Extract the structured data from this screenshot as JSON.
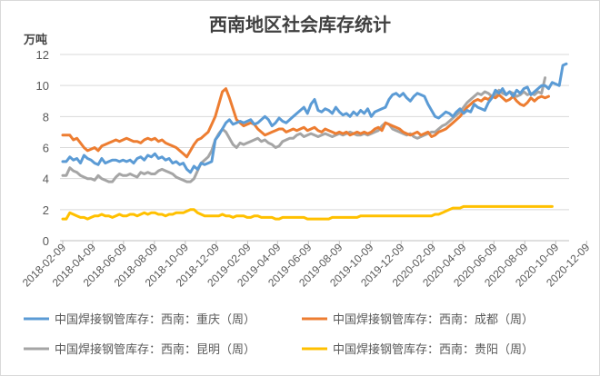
{
  "chart_data": {
    "type": "line",
    "title": "西南地区社会库存统计",
    "ylabel": "万吨",
    "ylim": [
      0,
      12
    ],
    "yticks": [
      0,
      2,
      4,
      6,
      8,
      10,
      12
    ],
    "grid": true,
    "legend_position": "bottom",
    "x_start": "2018-02-09",
    "x_step_weeks": 1,
    "xticks": [
      "2018-02-09",
      "2018-04-09",
      "2018-06-09",
      "2018-08-09",
      "2018-10-09",
      "2018-12-09",
      "2019-02-09",
      "2019-04-09",
      "2019-06-09",
      "2019-08-09",
      "2019-10-09",
      "2019-12-09",
      "2020-02-09",
      "2020-04-09",
      "2020-06-09",
      "2020-08-09",
      "2020-10-09",
      "2020-12-09"
    ],
    "series": [
      {
        "name": "中国焊接钢管库存：西南：重庆（周）",
        "color": "#5b9bd5",
        "values": [
          5.1,
          5.1,
          5.4,
          5.2,
          5.3,
          5.0,
          5.5,
          5.3,
          5.2,
          5.0,
          4.9,
          5.3,
          5.0,
          5.1,
          5.2,
          5.2,
          5.1,
          5.2,
          5.1,
          5.2,
          5.0,
          5.3,
          5.4,
          5.2,
          5.5,
          5.4,
          5.6,
          5.3,
          5.4,
          5.2,
          5.3,
          5.0,
          5.1,
          4.9,
          5.0,
          4.6,
          4.4,
          4.8,
          4.6,
          5.0,
          4.9,
          5.0,
          5.1,
          6.5,
          6.8,
          7.2,
          7.6,
          7.8,
          7.5,
          7.6,
          7.7,
          7.6,
          7.7,
          7.8,
          7.5,
          7.6,
          7.8,
          8.0,
          7.8,
          7.4,
          7.6,
          7.9,
          7.7,
          7.6,
          7.8,
          8.0,
          8.2,
          8.4,
          8.6,
          8.2,
          8.8,
          9.1,
          8.4,
          8.3,
          8.5,
          8.4,
          8.2,
          8.6,
          8.3,
          8.1,
          8.2,
          8.0,
          8.3,
          8.1,
          8.4,
          8.2,
          8.5,
          8.0,
          8.3,
          8.4,
          8.5,
          8.6,
          9.1,
          9.4,
          9.5,
          9.3,
          9.5,
          9.2,
          9.0,
          9.3,
          9.5,
          9.4,
          9.3,
          8.8,
          8.4,
          8.0,
          7.9,
          8.1,
          8.3,
          8.2,
          8.0,
          8.3,
          8.5,
          8.2,
          8.4,
          8.3,
          8.8,
          8.6,
          8.5,
          8.4,
          8.9,
          9.2,
          9.7,
          9.5,
          9.8,
          9.4,
          9.6,
          9.3,
          9.7,
          9.5,
          9.8,
          9.9,
          9.4,
          9.6,
          9.8,
          10.0,
          10.0,
          9.8,
          10.2,
          10.1,
          10.0,
          11.3,
          11.4
        ]
      },
      {
        "name": "中国焊接钢管库存：西南：成都（周）",
        "color": "#ed7d31",
        "values": [
          6.8,
          6.8,
          6.8,
          6.5,
          6.6,
          6.3,
          6.0,
          5.8,
          5.9,
          6.0,
          5.8,
          6.1,
          6.2,
          6.3,
          6.4,
          6.5,
          6.4,
          6.5,
          6.6,
          6.5,
          6.4,
          6.4,
          6.3,
          6.5,
          6.6,
          6.5,
          6.6,
          6.4,
          6.5,
          6.3,
          6.2,
          6.1,
          6.0,
          5.8,
          5.6,
          5.4,
          5.8,
          6.2,
          6.5,
          6.6,
          6.8,
          7.0,
          7.5,
          8.0,
          8.8,
          9.6,
          9.8,
          9.2,
          8.5,
          7.8,
          7.6,
          7.4,
          7.5,
          7.6,
          7.5,
          7.2,
          7.0,
          6.8,
          6.9,
          7.0,
          7.1,
          7.2,
          7.2,
          7.0,
          7.1,
          7.2,
          7.1,
          7.2,
          7.3,
          7.1,
          7.2,
          7.3,
          7.1,
          7.0,
          7.2,
          7.1,
          7.0,
          6.9,
          7.0,
          6.9,
          7.0,
          6.8,
          6.9,
          7.0,
          6.9,
          7.0,
          6.9,
          7.0,
          7.2,
          7.3,
          7.1,
          7.6,
          7.5,
          7.4,
          7.3,
          7.2,
          7.0,
          6.9,
          6.8,
          6.9,
          7.0,
          6.8,
          6.9,
          7.0,
          6.7,
          6.8,
          7.0,
          7.1,
          7.2,
          7.4,
          7.6,
          7.8,
          8.0,
          8.3,
          8.6,
          8.8,
          9.0,
          9.1,
          9.0,
          9.2,
          9.1,
          9.3,
          9.2,
          9.4,
          9.2,
          9.0,
          9.1,
          9.3,
          9.0,
          8.8,
          8.7,
          8.9,
          9.2,
          9.0,
          9.2,
          9.3,
          9.2,
          9.3
        ]
      },
      {
        "name": "中国焊接钢管库存：西南：昆明（周）",
        "color": "#a5a5a5",
        "values": [
          4.2,
          4.2,
          4.7,
          4.5,
          4.4,
          4.2,
          4.1,
          4.0,
          4.0,
          3.9,
          4.2,
          4.0,
          3.9,
          3.8,
          3.8,
          4.1,
          4.3,
          4.2,
          4.2,
          4.3,
          4.2,
          4.1,
          4.4,
          4.3,
          4.4,
          4.3,
          4.3,
          4.5,
          4.6,
          4.5,
          4.4,
          4.3,
          4.1,
          4.0,
          3.9,
          3.8,
          3.8,
          4.0,
          4.5,
          5.0,
          5.2,
          5.4,
          5.8,
          6.5,
          6.9,
          7.2,
          7.0,
          6.6,
          6.2,
          6.0,
          6.3,
          6.2,
          6.3,
          6.4,
          6.5,
          6.6,
          6.4,
          6.5,
          6.3,
          6.2,
          6.0,
          6.1,
          6.4,
          6.5,
          6.6,
          6.6,
          6.8,
          6.9,
          6.7,
          6.8,
          6.9,
          6.8,
          6.7,
          6.8,
          6.9,
          6.8,
          6.7,
          6.8,
          6.9,
          6.8,
          6.9,
          7.0,
          6.9,
          6.8,
          6.8,
          6.9,
          6.8,
          6.9,
          7.0,
          7.1,
          7.4,
          7.6,
          7.5,
          7.2,
          7.1,
          7.0,
          6.9,
          6.8,
          6.9,
          6.7,
          6.6,
          6.7,
          6.8,
          6.9,
          7.0,
          7.0,
          7.2,
          7.4,
          7.5,
          7.7,
          7.9,
          8.1,
          8.3,
          8.6,
          8.9,
          9.1,
          9.3,
          9.5,
          9.4,
          9.6,
          9.5,
          9.3,
          9.4,
          9.7,
          9.5,
          9.4,
          9.6,
          9.5,
          9.3,
          9.4,
          9.6,
          9.4,
          9.5,
          9.4,
          9.6,
          9.5,
          10.5
        ]
      },
      {
        "name": "中国焊接钢管库存：西南：贵阳（周）",
        "color": "#ffc000",
        "values": [
          1.4,
          1.4,
          1.8,
          1.7,
          1.6,
          1.5,
          1.5,
          1.4,
          1.5,
          1.6,
          1.6,
          1.7,
          1.6,
          1.6,
          1.5,
          1.6,
          1.7,
          1.6,
          1.6,
          1.7,
          1.7,
          1.6,
          1.7,
          1.8,
          1.7,
          1.8,
          1.8,
          1.7,
          1.7,
          1.6,
          1.7,
          1.7,
          1.8,
          1.8,
          1.8,
          1.9,
          2.0,
          2.0,
          1.8,
          1.7,
          1.6,
          1.6,
          1.6,
          1.6,
          1.6,
          1.7,
          1.6,
          1.6,
          1.5,
          1.6,
          1.6,
          1.6,
          1.5,
          1.5,
          1.6,
          1.6,
          1.5,
          1.5,
          1.5,
          1.5,
          1.4,
          1.4,
          1.5,
          1.5,
          1.5,
          1.5,
          1.5,
          1.5,
          1.5,
          1.4,
          1.4,
          1.4,
          1.4,
          1.4,
          1.4,
          1.4,
          1.5,
          1.5,
          1.5,
          1.5,
          1.5,
          1.5,
          1.5,
          1.5,
          1.6,
          1.6,
          1.6,
          1.6,
          1.6,
          1.6,
          1.6,
          1.6,
          1.6,
          1.6,
          1.6,
          1.6,
          1.6,
          1.6,
          1.6,
          1.6,
          1.6,
          1.6,
          1.6,
          1.6,
          1.6,
          1.7,
          1.7,
          1.8,
          1.9,
          2.0,
          2.1,
          2.1,
          2.1,
          2.2,
          2.2,
          2.2,
          2.2,
          2.2,
          2.2,
          2.2,
          2.2,
          2.2,
          2.2,
          2.2,
          2.2,
          2.2,
          2.2,
          2.2,
          2.2,
          2.2,
          2.2,
          2.2,
          2.2,
          2.2,
          2.2,
          2.2,
          2.2,
          2.2,
          2.2
        ]
      }
    ]
  }
}
